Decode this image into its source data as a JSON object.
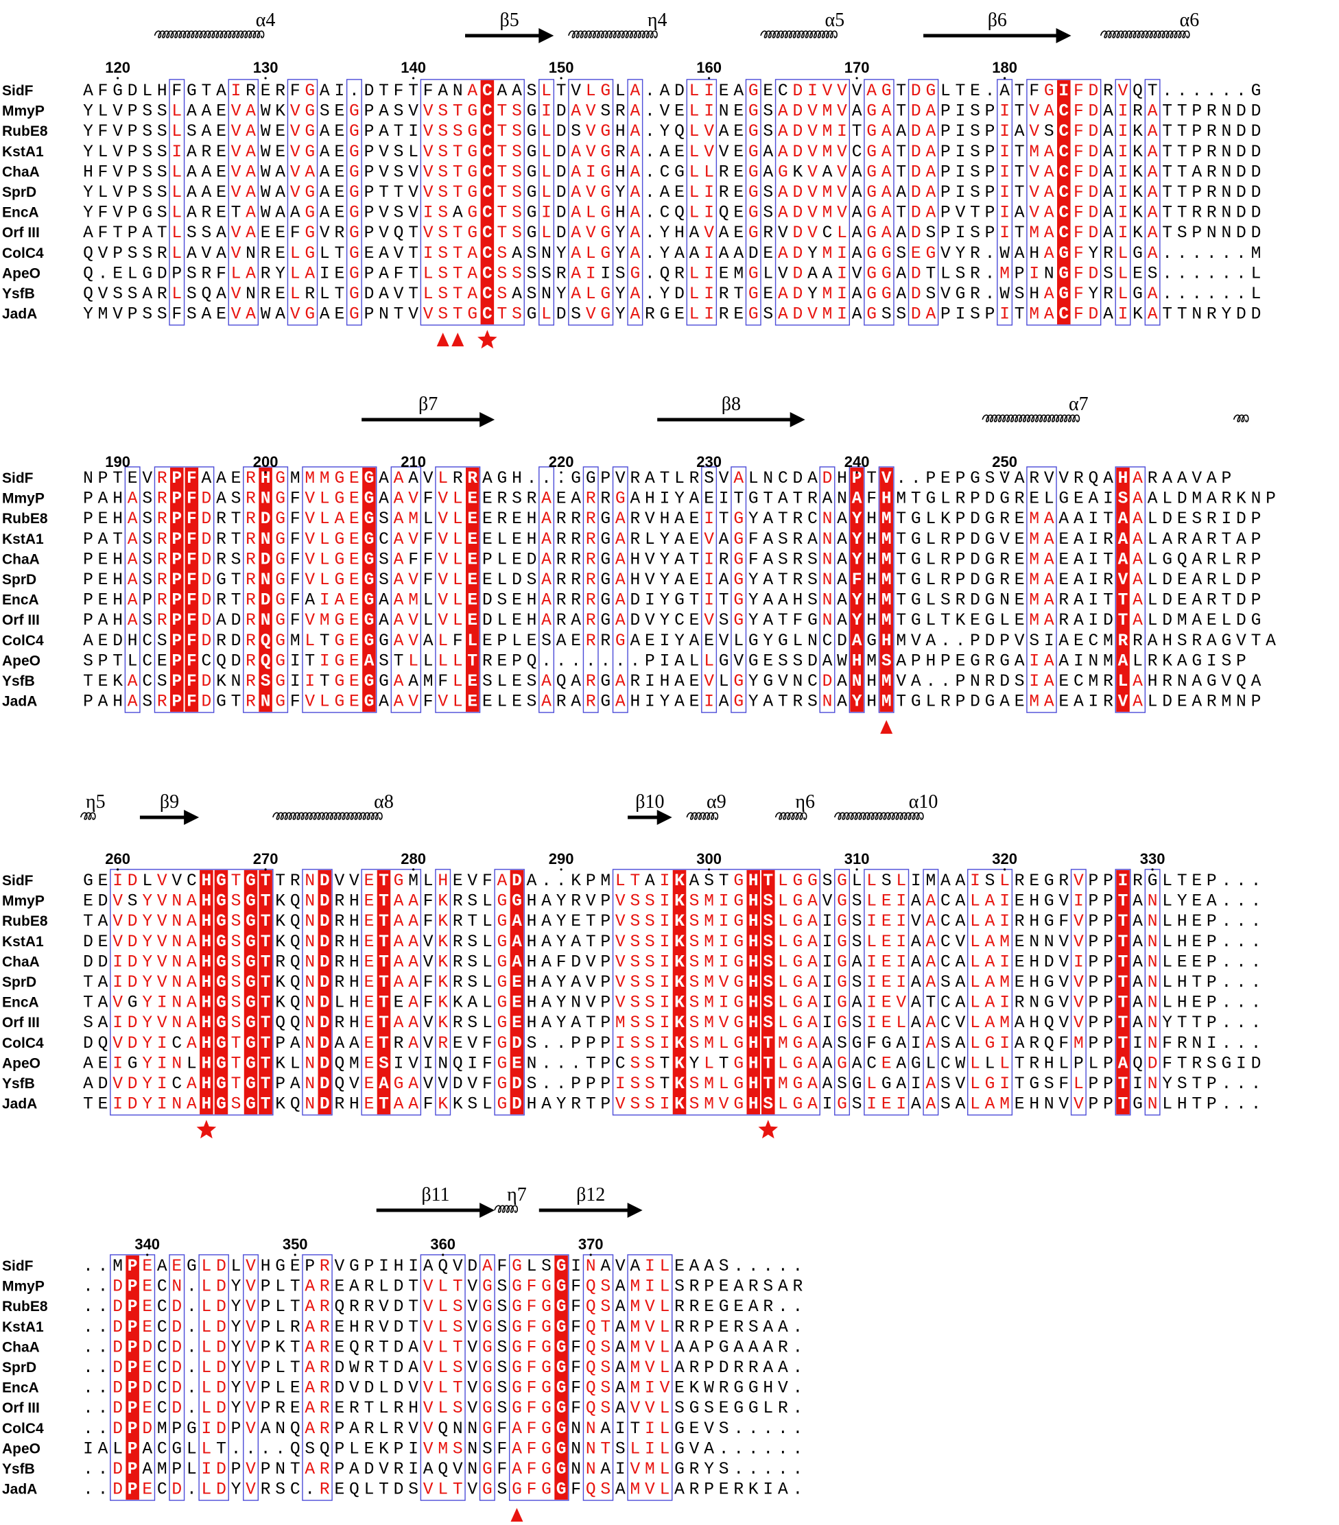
{
  "figure": {
    "colors": {
      "identical_bg": "#e8140f",
      "similar_text": "#e8140f",
      "normal_text": "#000000",
      "box": "#4b4bd8",
      "marker": "#e8140f"
    },
    "blocks": [
      {
        "start_number": 118,
        "tick_labels": [
          120,
          130,
          140,
          150,
          160,
          170,
          180
        ],
        "secondary_structure": [
          {
            "label": "α4",
            "type": "helix",
            "start": 5,
            "end": 19
          },
          {
            "label": "β5",
            "type": "strand",
            "start": 26,
            "end": 31
          },
          {
            "label": "η4",
            "type": "helix",
            "start": 33,
            "end": 44
          },
          {
            "label": "α5",
            "type": "helix",
            "start": 46,
            "end": 55
          },
          {
            "label": "β6",
            "type": "strand",
            "start": 57,
            "end": 66
          },
          {
            "label": "α6",
            "type": "helix",
            "start": 69,
            "end": 80
          }
        ],
        "sequences": [
          {
            "name": "SidF",
            "residues": "AFGDLHFGTAIRERFGAI.DTFTFANACAASLTVLGLA.ADLIEAGECDIVVVAGTDGLTE.ATFGIFDRVQT......G"
          },
          {
            "name": "MmyP",
            "residues": "YLVPSSLAAEVAWKVGSEGPASVVSTGCTSGIDAVSRA.VELINEGSADVMVAGATDAPISPITVACFDAIRATTPRNDD"
          },
          {
            "name": "RubE8",
            "residues": "YFVPSSLSAEVAWEVGAEGPATIVSSGCTSGLDSVGHA.YQLVAEGSADVMITGAADAPISPIAVSCFDAIKATTPRNDD"
          },
          {
            "name": "KstA1",
            "residues": "YLVPSSIAREVAWEVGAEGPVSLVSTGCTSGLDAVGRA.AELVVEGAADVMVCGATDAPISPITMACFDAIKATTPRNDD"
          },
          {
            "name": "ChaA",
            "residues": "HFVPSSLAAEVAWAVAAEGPVSVVSTGCTSGLDAIGHA.CGLLREGAGKVAVAGATDAPISPITVACFDAIKATTARNDD"
          },
          {
            "name": "SprD",
            "residues": "YLVPSSLAAEVAWAVGAEGPTTVVSTGCTSGLDAVGYA.AELIREGSADVMVAGAADAPISPITVACFDAIKATTPRNDD"
          },
          {
            "name": "EncA",
            "residues": "YFVPGSLARETAWAAGAEGPVSVISAGCTSGIDALGHA.CQLIQEGSADVMVAGATDAPVTPIAVACFDAIKATTRRNDD"
          },
          {
            "name": "Orf III",
            "residues": "AFTPATLSSAVAEEFGVRGPVQTVSTGCTSGLDAVGYA.YHAVAEGRVDVCLAGAADSPISPITMACFDAIKATSPNNDD"
          },
          {
            "name": "ColC4",
            "residues": "QVPSSRLAVAVNRELGLTGEAVTISTACSASNYALGYA.YAAIAADEADYMIAGGSEGVYR.WAHAGFYRLGA......M"
          },
          {
            "name": "ApeO",
            "residues": "Q.ELGDPSRFLARYLAIEGPAFTLSTACSSSSRAIISG.QRLIEMGLVDAAIVGGADTLSR.MPINGFDSLES......L"
          },
          {
            "name": "YsfB",
            "residues": "QVSSARLSQAVNRELRLTGDAVTLSTACSASNYALGYA.YDLIRTGEADYMIAGGADSVGR.WSHAGFYRLGA......L"
          },
          {
            "name": "JadA",
            "residues": "YMVPSSFSAEVAWAVGAEGPNTVVSTGCTSGLDSVGYARGELIREGSADVMIAGSSDAPISPITMACFDAIKATTNRYDD"
          }
        ],
        "identical_columns": [
          27,
          66
        ],
        "markers": [
          {
            "col": 24,
            "shape": "triangle"
          },
          {
            "col": 25,
            "shape": "triangle"
          },
          {
            "col": 27,
            "shape": "star"
          }
        ]
      },
      {
        "start_number": 188,
        "tick_labels": [
          190,
          200,
          210,
          220,
          230,
          240,
          250
        ],
        "secondary_structure": [
          {
            "label": "β7",
            "type": "strand",
            "start": 19,
            "end": 27
          },
          {
            "label": "β8",
            "type": "strand",
            "start": 39,
            "end": 48
          },
          {
            "label": "α7",
            "type": "helix",
            "start": 61,
            "end": 73
          },
          {
            "label": "",
            "type": "helix",
            "start": 78,
            "end": 79
          }
        ],
        "sequences": [
          {
            "name": "SidF",
            "residues": "NPTEVRPFAAERHGMMMGEGAAAVLRRAGH...GGPVRATLRSVALNCDADHPTV..PEPGSVARVVRQAHARAAVAP"
          },
          {
            "name": "MmyP",
            "residues": "PAHASRPFDASRNGFVLGEGAAVFVLEERSRAEARRGAHIYAEITGTATRANAFHMTGLRPDGRELGEAISAALDMARKNP"
          },
          {
            "name": "RubE8",
            "residues": "PEHASRPFDRTRDGFVLAEGSAMLVLEEREHARRRGARVHAEITGYATRCNAYHMTGLKPDGREMAAAITAALDESRIDP"
          },
          {
            "name": "KstA1",
            "residues": "PATASRPFDRTRNGFVLGEGCAVFVLEELEHARRRGARLYAEVAGFASRANAYHMTGLRPDGVEMAEAIRAALARARTAP"
          },
          {
            "name": "ChaA",
            "residues": "PEHASRPFDRSRDGFVLGEGSAFFVLEPLEDARRRGAHVYATIRGFASRSNAYHMTGLRPDGREMAEAITAALGQARLRP"
          },
          {
            "name": "SprD",
            "residues": "PEHASRPFDGTRNGFVLGEGSAVFVLEELDSARRRGAHVYAEIAGYATRSNAFHMTGLRPDGREMAEAIRVALDEARLDP"
          },
          {
            "name": "EncA",
            "residues": "PEHAPRPFDRTRDGFAIAEGAAMLVLEDSEHARRRGADIYGTITGYAAHSNAYHMTGLSRDGNEMARAITTALDEARTDP"
          },
          {
            "name": "Orf III",
            "residues": "PAHASRPFDADRNGFVMGEGAAVLVLEDLEHARARGADVYCEVSGYATFGNAYHMTGLTKEGLEMARAIDTALDMAELDG"
          },
          {
            "name": "ColC4",
            "residues": "AEDHCSPFDRDRQGMLTGEGGAVALFLEPLESAERRGAEIYAEVLGYGLNCDAGHMVA..PDPVSIAECMRRAHSRAGVTA"
          },
          {
            "name": "ApeO",
            "residues": "SPTLCEPFCQDRQGITIGEASTLLLLTREPQ.......PIALLGVGESSDAWHMSAPHPEGRGAIAAINMALRKAGISP"
          },
          {
            "name": "YsfB",
            "residues": "TEKACSPFDKNRSGIITGEGGAAMFLESLESAQARGARIHAEVLGYGVNCDANHMVA..PNRDSIAECMRLAHRNAGVQA"
          },
          {
            "name": "JadA",
            "residues": "PAHASRPFDGTRNGFVLGEGAAVFVLEELESARARGAHIYAEIAGYATRSNAYHMTGLRPDGAEMAEAIRVALDEARMNP"
          }
        ],
        "identical_columns": [
          6,
          7,
          12,
          19,
          26,
          52,
          54,
          70
        ],
        "markers": [
          {
            "col": 54,
            "shape": "triangle"
          }
        ]
      },
      {
        "start_number": 258,
        "tick_labels": [
          260,
          270,
          280,
          290,
          300,
          310,
          320,
          330
        ],
        "secondary_structure": [
          {
            "label": "η5",
            "type": "helix",
            "start": 0,
            "end": 1
          },
          {
            "label": "β9",
            "type": "strand",
            "start": 4,
            "end": 7
          },
          {
            "label": "α8",
            "type": "helix",
            "start": 13,
            "end": 27
          },
          {
            "label": "β10",
            "type": "strand",
            "start": 37,
            "end": 39
          },
          {
            "label": "α9",
            "type": "helix",
            "start": 41,
            "end": 44
          },
          {
            "label": "η6",
            "type": "helix",
            "start": 47,
            "end": 50
          },
          {
            "label": "α10",
            "type": "helix",
            "start": 51,
            "end": 62
          }
        ],
        "sequences": [
          {
            "name": "SidF",
            "residues": "GEIDLVVCHGTGTTRNDVVETGMLHEVFADA..KPMLTAIKASTGHTLGGSGLLSLIMAAISLREGRVPPIRGLTEP..."
          },
          {
            "name": "MmyP",
            "residues": "EDVSYVNAHGSGTKQNDRHETAAFKRSLGGHAYRVPVSSIKSMIGHSLGAVGSLEIAACALAIEHGVIPPTANLYEA..."
          },
          {
            "name": "RubE8",
            "residues": "TAVDYVNAHGSGTKQNDRHETAAFKRTLGAHAYETPVSSIKSMIGHSLGAIGSIEIVACALAIRHGFVPPTANLHEP..."
          },
          {
            "name": "KstA1",
            "residues": "DEVDYVNAHGSGTKQNDRHETAAVKRSLGAHAYATPVSSIKSMIGHSLGAIGSLEIAACVLAMENNVVPPTANLHEP..."
          },
          {
            "name": "ChaA",
            "residues": "DDIDYVNAHGSGTRQNDRHETAAVKRSLGAHAFDVPVSSIKSMIGHSLGAIGAIEIAACALAIEHDVIPPTANLEEP..."
          },
          {
            "name": "SprD",
            "residues": "TAIDYVNAHGSGTKQNDRHETAAFKRSLGEHAYAVPVSSIKSMVGHSLGAIGSIEIAASALAMEHGVVPPTANLHTP..."
          },
          {
            "name": "EncA",
            "residues": "TAVGYINAHGSGTKQNDLHETEAFKKALGEHAYNVPVSSIKSMIGHSLGAIGAIEVATCALAIRNGVVPPTANLHEP..."
          },
          {
            "name": "Orf III",
            "residues": "SAIDYVNAHGSGTQQNDRHETAAVKRSLGEHAYATPMSSIKSMVGHSLGAIGSIELAACVLAMAHQVVPPTANYTTP..."
          },
          {
            "name": "ColC4",
            "residues": "DQVDYICAHGTGTPANDAAETRAVREVFGDS..PPPISSIKSMLGHTMGAASGFGAIASALGIARQFMPPTINFRNI..."
          },
          {
            "name": "ApeO",
            "residues": "AEIGYINLHGTGTKLNDQMESIVINQIFGEN...TPCSSTKYLTGHTLGAAGACEAGLCWLLLTRHLPLPAQDFTRSGID"
          },
          {
            "name": "YsfB",
            "residues": "ADVDYICAHGTGTPANDQVEAGAVVDVFGDS..PPPISSTKSMLGHTMGAASGLGAIASVLGITGSFLPPTINYSTP..."
          },
          {
            "name": "JadA",
            "residues": "TEIDYINAHGSGTKQNDRHETAAFKKSLGDHAYRTPVSSIKSMVGHSLGAIGSIEIAASALAMEHNVVPPTGNLHTP..."
          }
        ],
        "identical_columns": [
          8,
          9,
          11,
          12,
          16,
          20,
          29,
          40,
          45,
          46,
          70
        ],
        "markers": [
          {
            "col": 8,
            "shape": "star"
          },
          {
            "col": 46,
            "shape": "star"
          }
        ]
      },
      {
        "start_number": 336,
        "tick_labels": [
          340,
          350,
          360,
          370
        ],
        "secondary_structure": [
          {
            "label": "β11",
            "type": "strand",
            "start": 20,
            "end": 27
          },
          {
            "label": "η7",
            "type": "helix",
            "start": 28,
            "end": 30
          },
          {
            "label": "β12",
            "type": "strand",
            "start": 31,
            "end": 37
          }
        ],
        "sequences": [
          {
            "name": "SidF",
            "residues": "..MPEAEGLDLVHGEPRVGPIHIAQVDAFGLSGINAVAILEAAS....."
          },
          {
            "name": "MmyP",
            "residues": "..DPECN.LDYVPLTAREARLDTVLTVGSGFGGFQSAMILSRPEARSAR"
          },
          {
            "name": "RubE8",
            "residues": "..DPECD.LDYVPLTARQRRVDTVLSVGSGFGGFQSAMVLRREGEAR.."
          },
          {
            "name": "KstA1",
            "residues": "..DPECD.LDYVPLRAREHRVDTVLSVGSGFGGFQTAMVLRRPERSAA."
          },
          {
            "name": "ChaA",
            "residues": "..DPDCD.LDYVPKTAREQRTDAVLTVGSGFGGFQSAMVLAAPGAAAR."
          },
          {
            "name": "SprD",
            "residues": "..DPECD.LDYVPLTARDWRTDAVLSVGSGFGGFQSAMVLARPDRRAA."
          },
          {
            "name": "EncA",
            "residues": "..DPDCD.LDYVPLEARDVDLDVVLTVGSGFGGFQSAMIVEKWRGGHV."
          },
          {
            "name": "Orf III",
            "residues": "..DPECD.LDYVPREARERTLRHVLSVGSGFGGFQSAVVLSGSEGGLR."
          },
          {
            "name": "ColC4",
            "residues": "..DPDMPGIDPVANQARPARLRVVQNNGFAFGGNNAITILGEVS....."
          },
          {
            "name": "ApeO",
            "residues": "IALPACGLLT....QSQPLEKPIVMSNSFAFGGNNTSLILGVA......"
          },
          {
            "name": "YsfB",
            "residues": "..DPAMPLIDPVPNTARPADVRIAQVNGFAFGGNNAIVMLGRYS....."
          },
          {
            "name": "JadA",
            "residues": "..DPECD.LDYVRSC.REQLTDSVLTVGSGFGGFQSAMVLARPERKIA."
          }
        ],
        "identical_columns": [
          3,
          32
        ],
        "markers": [
          {
            "col": 29,
            "shape": "triangle"
          }
        ]
      }
    ]
  }
}
